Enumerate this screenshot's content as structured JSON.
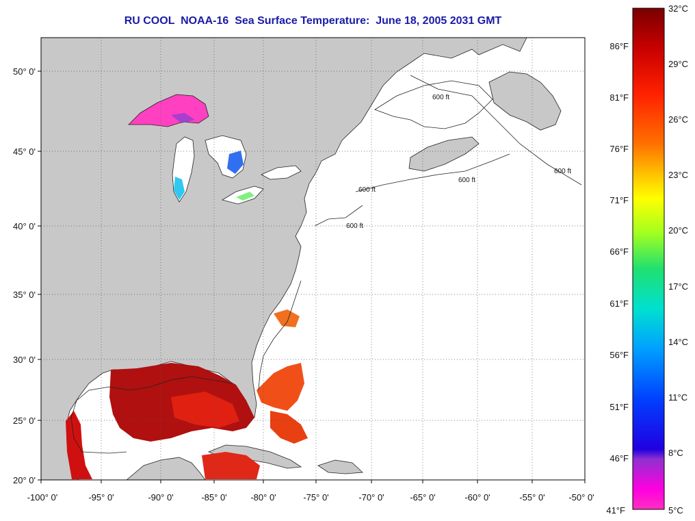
{
  "title": "RU COOL  NOAA-16  Sea Surface Temperature:  June 18, 2005 2031 GMT",
  "map": {
    "lon_labels": [
      "-100° 0'",
      "-95° 0'",
      "-90° 0'",
      "-85° 0'",
      "-80° 0'",
      "-75° 0'",
      "-70° 0'",
      "-65° 0'",
      "-60° 0'",
      "-55° 0'",
      "-50° 0'"
    ],
    "lat_labels": [
      "50° 0'",
      "45° 0'",
      "40° 0'",
      "35° 0'",
      "30° 0'",
      "25° 0'",
      "20° 0'"
    ],
    "isobath_label": "600 ft",
    "land_color": "#c8c8c8",
    "water_color": "#ffffff"
  },
  "colorbar": {
    "celsius_labels": [
      "32°C",
      "29°C",
      "26°C",
      "23°C",
      "20°C",
      "17°C",
      "14°C",
      "11°C",
      "8°C",
      "5°C"
    ],
    "fahrenheit_labels": [
      "86°F",
      "81°F",
      "76°F",
      "71°F",
      "66°F",
      "61°F",
      "56°F",
      "51°F",
      "46°F",
      "41°F"
    ],
    "gradient_colors": [
      "#7a0000",
      "#c80000",
      "#ff2000",
      "#ff7000",
      "#ffc000",
      "#ffff00",
      "#a0ff20",
      "#20e070",
      "#00e0d0",
      "#00a0ff",
      "#0040ff",
      "#2000e0",
      "#9030d0",
      "#ff00e0",
      "#ff30c0"
    ]
  }
}
